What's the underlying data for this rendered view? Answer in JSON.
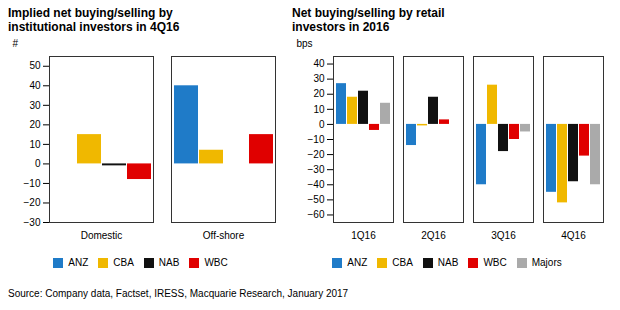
{
  "source": "Source: Company data, Factset, IRESS, Macquarie Research, January 2017",
  "chart_data": [
    {
      "type": "bar",
      "title": "Implied net buying/selling by\ninstitutional investors in 4Q16",
      "ylabel": "#",
      "categories": [
        "Domestic",
        "Off-shore"
      ],
      "series": [
        {
          "name": "ANZ",
          "color": "#1f7bc8",
          "values": [
            0,
            40
          ]
        },
        {
          "name": "CBA",
          "color": "#f0b800",
          "values": [
            15,
            7
          ]
        },
        {
          "name": "NAB",
          "color": "#111111",
          "values": [
            -1,
            0
          ]
        },
        {
          "name": "WBC",
          "color": "#e00000",
          "values": [
            -8,
            15
          ]
        }
      ],
      "ylim": [
        -30,
        55
      ],
      "yticks": [
        -30,
        -20,
        -10,
        0,
        10,
        20,
        30,
        40,
        50
      ],
      "grid": false,
      "legend": "bottom"
    },
    {
      "type": "bar",
      "title": "Net buying/selling by retail\ninvestors in 2016",
      "ylabel": "bps",
      "categories": [
        "1Q16",
        "2Q16",
        "3Q16",
        "4Q16"
      ],
      "series": [
        {
          "name": "ANZ",
          "color": "#1f7bc8",
          "values": [
            27,
            -14,
            -40,
            -45
          ]
        },
        {
          "name": "CBA",
          "color": "#f0b800",
          "values": [
            18,
            -1,
            26,
            -52
          ]
        },
        {
          "name": "NAB",
          "color": "#111111",
          "values": [
            22,
            18,
            -18,
            -38
          ]
        },
        {
          "name": "WBC",
          "color": "#e00000",
          "values": [
            -4,
            3,
            -10,
            -21
          ]
        },
        {
          "name": "Majors",
          "color": "#aaaaaa",
          "values": [
            14,
            0,
            -5,
            -40
          ]
        }
      ],
      "ylim": [
        -65,
        45
      ],
      "yticks": [
        -60,
        -50,
        -40,
        -30,
        -20,
        -10,
        0,
        10,
        20,
        30,
        40
      ],
      "grid": false,
      "legend": "bottom"
    }
  ]
}
